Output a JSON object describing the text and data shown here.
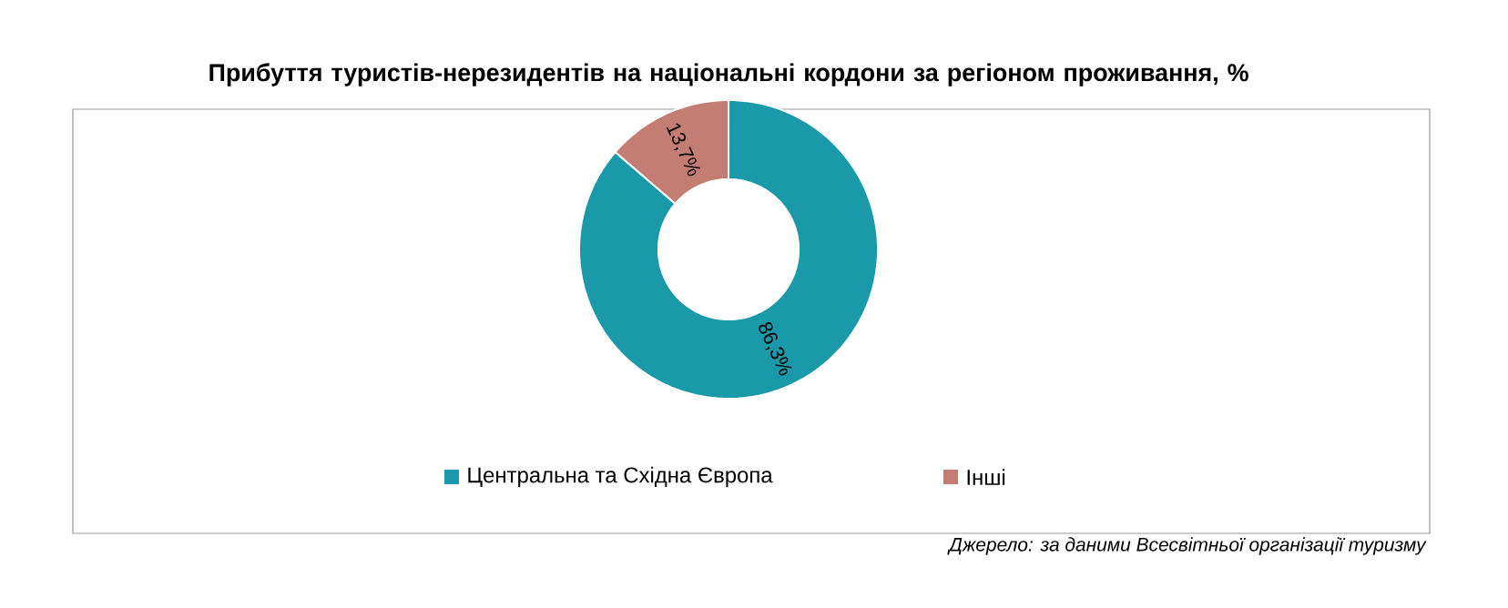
{
  "chart_data": {
    "type": "donut",
    "title": "Прибуття туристів-нерезидентів на національні кордони за регіоном проживання, %",
    "categories": [
      "Центральна та Східна Європа",
      "Інші"
    ],
    "values": [
      86.3,
      13.7
    ],
    "colors": [
      "#1a9aa8",
      "#c47d72"
    ],
    "value_labels": [
      "86,3%",
      "13,7%"
    ],
    "legend": "bottom",
    "annotations": [
      "Джерело: за даними Всесвітньої організації туризму"
    ]
  }
}
